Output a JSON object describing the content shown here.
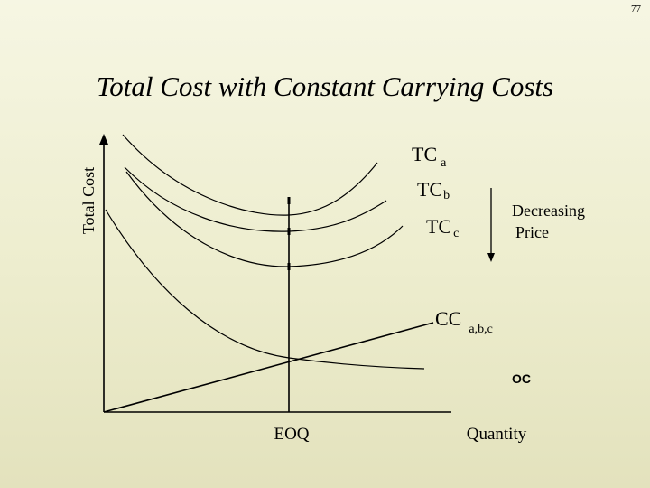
{
  "page_number": "77",
  "title": "Total Cost with Constant Carrying Costs",
  "axes": {
    "y_label": "Total Cost",
    "x_label": "Quantity"
  },
  "labels": {
    "eoq": "EOQ",
    "tc_a": {
      "main": "TC",
      "sub": "a"
    },
    "tc_b": {
      "main": "TC",
      "sub": "b"
    },
    "tc_c": {
      "main": "TC",
      "sub": "c"
    },
    "cc": {
      "main": "CC",
      "sub": "a,b,c"
    },
    "oc": "OC",
    "decreasing_price_1": "Decreasing",
    "decreasing_price_2": "Price"
  }
}
